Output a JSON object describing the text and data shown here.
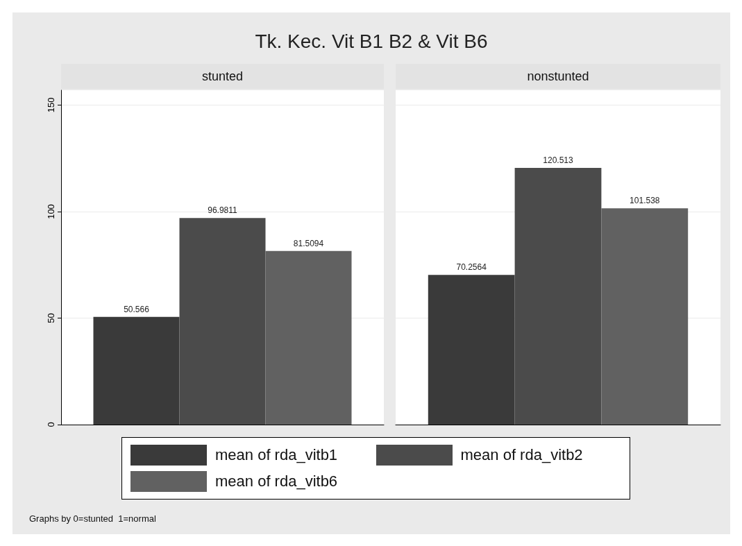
{
  "chart_data": {
    "type": "bar",
    "title": "Tk. Kec. Vit B1 B2 & Vit B6",
    "categories": [
      "stunted",
      "nonstunted"
    ],
    "series": [
      {
        "name": "mean of rda_vitb1",
        "color": "#3a3a3a",
        "values": [
          50.566,
          70.2564
        ]
      },
      {
        "name": "mean of rda_vitb2",
        "color": "#4b4b4b",
        "values": [
          96.9811,
          120.513
        ]
      },
      {
        "name": "mean of rda_vitb6",
        "color": "#616161",
        "values": [
          81.5094,
          101.538
        ]
      }
    ],
    "ylim": [
      0,
      157
    ],
    "yticks": [
      0,
      50,
      100,
      150
    ],
    "grid": "y",
    "legend": "bottom",
    "data_labels": true,
    "annotations": [
      "Graphs by 0=stunted  1=normal"
    ]
  }
}
